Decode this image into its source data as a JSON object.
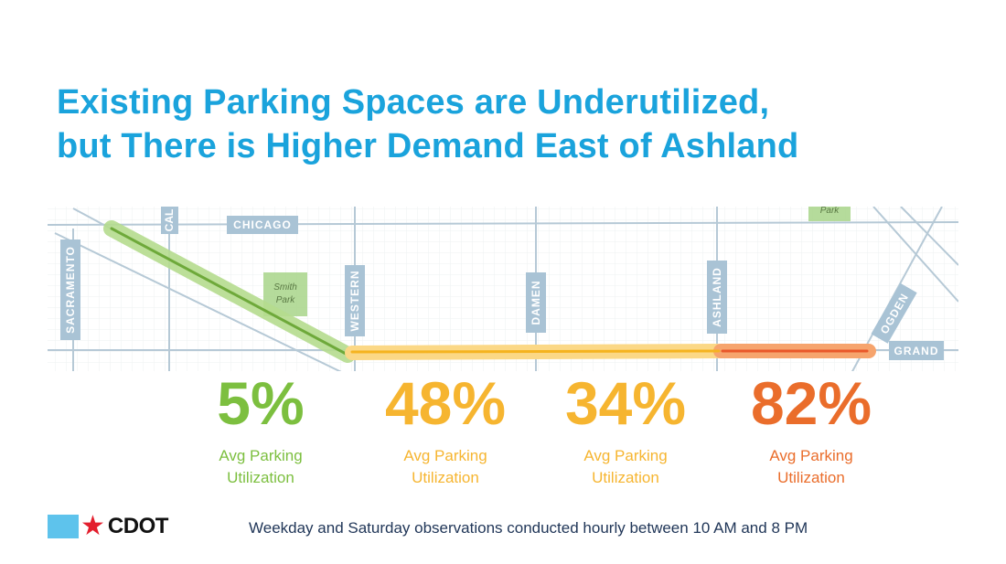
{
  "title": {
    "line1": "Existing Parking Spaces are Underutilized,",
    "line2": "but There is Higher Demand East of Ashland"
  },
  "map": {
    "street_labels": {
      "chicago": "CHICAGO",
      "cal": "CAL",
      "sacramento": "SACRAMENTO",
      "western": "WESTERN",
      "damen": "DAMEN",
      "ashland": "ASHLAND",
      "ogden": "OGDEN",
      "grand": "GRAND"
    },
    "parks": {
      "smith_park_line1": "Smith",
      "smith_park_line2": "Park",
      "top_park": "Park"
    }
  },
  "segments": [
    {
      "value": "5%",
      "label_line1": "Avg Parking",
      "label_line2": "Utilization",
      "color": "#7cbf3f"
    },
    {
      "value": "48%",
      "label_line1": "Avg Parking",
      "label_line2": "Utilization",
      "color": "#f6b530"
    },
    {
      "value": "34%",
      "label_line1": "Avg Parking",
      "label_line2": "Utilization",
      "color": "#f6b530"
    },
    {
      "value": "82%",
      "label_line1": "Avg Parking",
      "label_line2": "Utilization",
      "color": "#ea6d2b"
    }
  ],
  "footer": {
    "logo_text": "CDOT",
    "note": "Weekday and Saturday observations conducted hourly between 10 AM and 8 PM"
  },
  "colors": {
    "title": "#1aa3dc",
    "street_label_bg": "#a9c3d5",
    "park": "#a8d58a"
  }
}
